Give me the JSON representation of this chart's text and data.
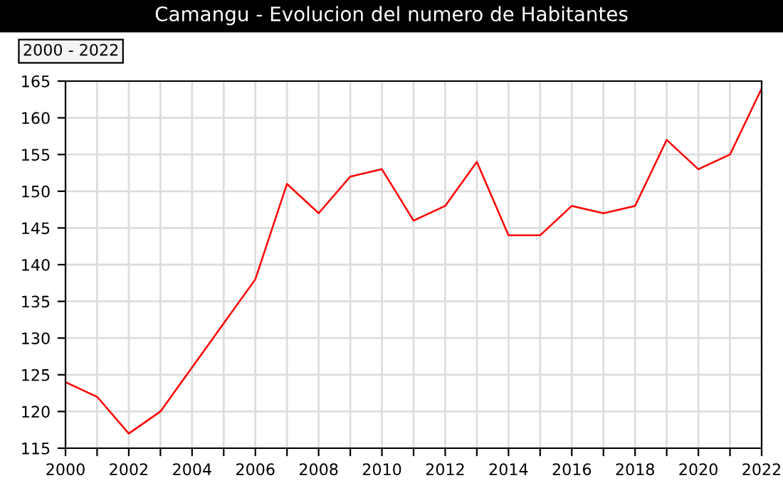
{
  "chart_data": {
    "type": "line",
    "title": "Camangu - Evolucion del numero de Habitantes",
    "annotations": [
      "2000 - 2022"
    ],
    "x": [
      2000,
      2001,
      2002,
      2003,
      2004,
      2005,
      2006,
      2007,
      2008,
      2009,
      2010,
      2011,
      2012,
      2013,
      2014,
      2015,
      2016,
      2017,
      2018,
      2019,
      2020,
      2021,
      2022
    ],
    "series": [
      {
        "color": "#ff0000",
        "values": [
          124,
          122,
          117,
          120,
          126,
          132,
          138,
          151,
          147,
          152,
          153,
          146,
          148,
          154,
          144,
          144,
          148,
          147,
          148,
          157,
          153,
          155,
          164
        ]
      }
    ],
    "xlim": [
      2000,
      2022
    ],
    "xticks": [
      2000,
      {
        "value": 2001,
        "label": null
      },
      2002,
      {
        "value": 2003,
        "label": null
      },
      2004,
      {
        "value": 2005,
        "label": null
      },
      2006,
      {
        "value": 2007,
        "label": null
      },
      2008,
      {
        "value": 2009,
        "label": null
      },
      2010,
      {
        "value": 2011,
        "label": null
      },
      2012,
      {
        "value": 2013,
        "label": null
      },
      2014,
      {
        "value": 2015,
        "label": null
      },
      2016,
      {
        "value": 2017,
        "label": null
      },
      2018,
      {
        "value": 2019,
        "label": null
      },
      2020,
      {
        "value": 2021,
        "label": null
      },
      2022
    ],
    "ylim": [
      115,
      165
    ],
    "yticks": [
      115,
      120,
      125,
      130,
      135,
      140,
      145,
      150,
      155,
      160,
      165
    ],
    "grid": true,
    "legend": false
  }
}
